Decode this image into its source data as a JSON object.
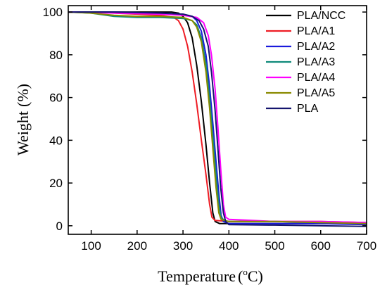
{
  "chart_data": {
    "type": "line",
    "xlabel": "Temperature",
    "xlabel_unit_open": "(",
    "xlabel_unit_sup": "o",
    "xlabel_unit_main": "C",
    "xlabel_unit_close": ")",
    "ylabel": "Weight",
    "ylabel_unit": "(%)",
    "xlim": [
      50,
      700
    ],
    "ylim": [
      -4,
      103
    ],
    "x_ticks": [
      100,
      200,
      300,
      400,
      500,
      600,
      700
    ],
    "y_ticks": [
      0,
      20,
      40,
      60,
      80,
      100
    ],
    "x_tick_labels": [
      "100",
      "200",
      "300",
      "400",
      "500",
      "600",
      "700"
    ],
    "y_tick_labels": [
      "0",
      "20",
      "40",
      "60",
      "80",
      "100"
    ],
    "grid": false,
    "legend_position": "top-right",
    "series": [
      {
        "name": "PLA/NCC",
        "color": "#000000",
        "points": [
          [
            50,
            100
          ],
          [
            150,
            100
          ],
          [
            250,
            100
          ],
          [
            275,
            100
          ],
          [
            290,
            99.5
          ],
          [
            300,
            98
          ],
          [
            310,
            95
          ],
          [
            320,
            88
          ],
          [
            330,
            75
          ],
          [
            340,
            58
          ],
          [
            350,
            38
          ],
          [
            358,
            20
          ],
          [
            365,
            6
          ],
          [
            370,
            2
          ],
          [
            380,
            1
          ],
          [
            400,
            1
          ],
          [
            500,
            1
          ],
          [
            600,
            1
          ],
          [
            700,
            0.8
          ]
        ]
      },
      {
        "name": "PLA/A1",
        "color": "#ee1c24",
        "points": [
          [
            50,
            100
          ],
          [
            100,
            100
          ],
          [
            150,
            99.5
          ],
          [
            200,
            99
          ],
          [
            250,
            98.5
          ],
          [
            280,
            97.5
          ],
          [
            290,
            96
          ],
          [
            300,
            92
          ],
          [
            310,
            84
          ],
          [
            320,
            72
          ],
          [
            330,
            57
          ],
          [
            340,
            40
          ],
          [
            350,
            24
          ],
          [
            358,
            10
          ],
          [
            363,
            4
          ],
          [
            370,
            2.5
          ],
          [
            400,
            2
          ],
          [
            500,
            2
          ],
          [
            600,
            2
          ],
          [
            700,
            1.5
          ]
        ]
      },
      {
        "name": "PLA/A2",
        "color": "#1a1adc",
        "points": [
          [
            50,
            100
          ],
          [
            150,
            100
          ],
          [
            250,
            99.5
          ],
          [
            300,
            99
          ],
          [
            320,
            98
          ],
          [
            330,
            96
          ],
          [
            340,
            91
          ],
          [
            350,
            80
          ],
          [
            358,
            65
          ],
          [
            365,
            48
          ],
          [
            372,
            30
          ],
          [
            378,
            15
          ],
          [
            383,
            5
          ],
          [
            388,
            2
          ],
          [
            400,
            1
          ],
          [
            500,
            1
          ],
          [
            600,
            1
          ],
          [
            700,
            0.5
          ]
        ]
      },
      {
        "name": "PLA/A3",
        "color": "#0f8a7a",
        "points": [
          [
            50,
            100
          ],
          [
            100,
            99.5
          ],
          [
            150,
            98
          ],
          [
            200,
            97.5
          ],
          [
            250,
            97.5
          ],
          [
            300,
            97
          ],
          [
            320,
            96
          ],
          [
            330,
            94
          ],
          [
            340,
            88
          ],
          [
            350,
            76
          ],
          [
            358,
            60
          ],
          [
            365,
            42
          ],
          [
            372,
            24
          ],
          [
            378,
            10
          ],
          [
            383,
            4
          ],
          [
            390,
            2.5
          ],
          [
            400,
            2
          ],
          [
            500,
            2
          ],
          [
            600,
            1.5
          ],
          [
            700,
            1.5
          ]
        ]
      },
      {
        "name": "PLA/A4",
        "color": "#ff00ff",
        "points": [
          [
            50,
            100
          ],
          [
            150,
            99.5
          ],
          [
            250,
            99
          ],
          [
            300,
            98.5
          ],
          [
            330,
            97.5
          ],
          [
            345,
            95
          ],
          [
            355,
            89
          ],
          [
            362,
            80
          ],
          [
            370,
            64
          ],
          [
            376,
            46
          ],
          [
            382,
            27
          ],
          [
            388,
            10
          ],
          [
            393,
            4
          ],
          [
            400,
            3
          ],
          [
            450,
            2.5
          ],
          [
            500,
            2
          ],
          [
            600,
            2
          ],
          [
            700,
            1.5
          ]
        ]
      },
      {
        "name": "PLA/A5",
        "color": "#8a8a00",
        "points": [
          [
            50,
            100
          ],
          [
            100,
            99.5
          ],
          [
            150,
            98.5
          ],
          [
            200,
            98
          ],
          [
            250,
            98
          ],
          [
            300,
            97.5
          ],
          [
            320,
            96
          ],
          [
            330,
            93
          ],
          [
            340,
            86
          ],
          [
            350,
            72
          ],
          [
            358,
            55
          ],
          [
            365,
            36
          ],
          [
            372,
            18
          ],
          [
            378,
            6
          ],
          [
            383,
            3
          ],
          [
            390,
            2.5
          ],
          [
            400,
            2
          ],
          [
            500,
            2
          ],
          [
            600,
            1.5
          ],
          [
            700,
            1
          ]
        ]
      },
      {
        "name": "PLA",
        "color": "#15156e",
        "points": [
          [
            50,
            100
          ],
          [
            150,
            100
          ],
          [
            250,
            99.5
          ],
          [
            300,
            99
          ],
          [
            320,
            98
          ],
          [
            335,
            96
          ],
          [
            345,
            92
          ],
          [
            355,
            84
          ],
          [
            362,
            72
          ],
          [
            370,
            54
          ],
          [
            376,
            36
          ],
          [
            382,
            18
          ],
          [
            388,
            6
          ],
          [
            393,
            2
          ],
          [
            400,
            0.5
          ],
          [
            500,
            0.3
          ],
          [
            600,
            0
          ],
          [
            700,
            -0.3
          ]
        ]
      }
    ]
  }
}
